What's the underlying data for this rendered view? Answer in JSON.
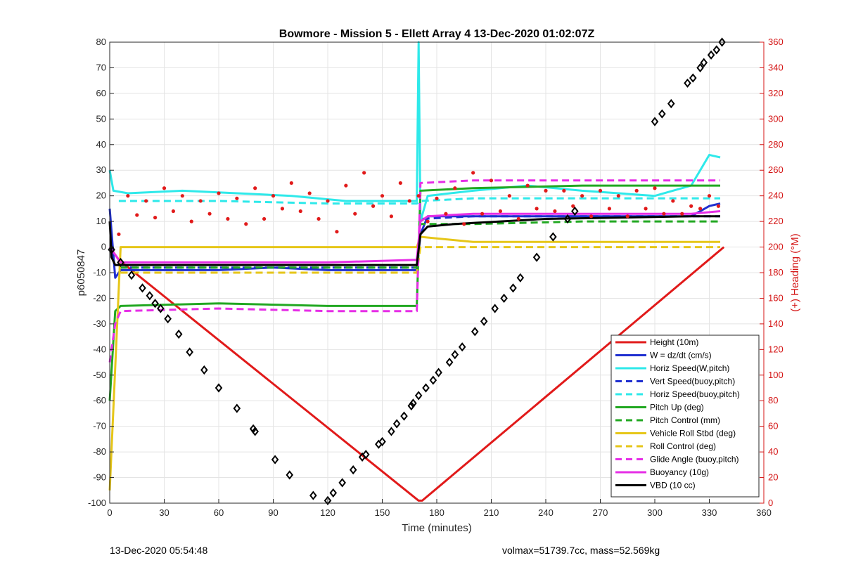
{
  "chart_data": {
    "type": "line",
    "title": "Bowmore - Mission 5 - Ellett Array 4 13-Dec-2020 01:02:07Z",
    "xlabel": "Time (minutes)",
    "ylabel": "p6050847",
    "y2label": "(+) Heading (°M)",
    "xlim": [
      0,
      360
    ],
    "ylim": [
      -100,
      80
    ],
    "y2lim": [
      0,
      360
    ],
    "grid": true,
    "legend_position": "bottom-right",
    "x_ticks": [
      "0",
      "30",
      "60",
      "90",
      "120",
      "150",
      "180",
      "210",
      "240",
      "270",
      "300",
      "330",
      "360"
    ],
    "y_ticks": [
      "80",
      "70",
      "60",
      "50",
      "40",
      "30",
      "20",
      "10",
      "0",
      "-10",
      "-20",
      "-30",
      "-40",
      "-50",
      "-60",
      "-70",
      "-80",
      "-90",
      "-100"
    ],
    "y2_ticks": [
      "360",
      "340",
      "320",
      "300",
      "280",
      "260",
      "240",
      "220",
      "200",
      "180",
      "160",
      "140",
      "120",
      "100",
      "80",
      "60",
      "40",
      "20",
      "0"
    ],
    "series": [
      {
        "name": "Height (10m)",
        "color": "#e11a1a",
        "style": "solid",
        "x": [
          0,
          5,
          170,
          172,
          338
        ],
        "y": [
          0,
          -5,
          -99,
          -99,
          0
        ]
      },
      {
        "name": "W = dz/dt (cm/s)",
        "color": "#1f2fd0",
        "style": "solid",
        "x": [
          0,
          3,
          6,
          30,
          60,
          90,
          120,
          150,
          169,
          171,
          175,
          200,
          240,
          280,
          320,
          330,
          336
        ],
        "y": [
          15,
          -12,
          -9,
          -9,
          -9,
          -8,
          -9,
          -9,
          -9,
          5,
          12,
          12,
          12,
          12,
          12,
          16,
          17
        ]
      },
      {
        "name": "Horiz Speed(W,pitch)",
        "color": "#2ee9ea",
        "style": "solid",
        "x": [
          0,
          2,
          10,
          40,
          70,
          100,
          130,
          150,
          169,
          170,
          171,
          175,
          200,
          230,
          260,
          300,
          320,
          330,
          336
        ],
        "y": [
          30,
          22,
          21,
          22,
          21,
          20,
          18,
          18,
          18,
          80,
          10,
          20,
          22,
          24,
          22,
          20,
          24,
          36,
          35
        ]
      },
      {
        "name": "Vert Speed(buoy,pitch)",
        "color": "#1f2fd0",
        "style": "dashed",
        "x": [
          5,
          60,
          120,
          169,
          171,
          200,
          260,
          320,
          336
        ],
        "y": [
          -8,
          -8,
          -8,
          -8,
          11,
          12,
          12,
          12,
          12
        ]
      },
      {
        "name": "Horiz Speed(buoy,pitch)",
        "color": "#2ee9ea",
        "style": "dashed",
        "x": [
          5,
          60,
          120,
          169,
          171,
          200,
          260,
          320,
          336
        ],
        "y": [
          18,
          18,
          17,
          17,
          18,
          19,
          19,
          19,
          19
        ]
      },
      {
        "name": "Pitch Up (deg)",
        "color": "#22a822",
        "style": "solid",
        "x": [
          0,
          3,
          6,
          60,
          120,
          169,
          171,
          200,
          260,
          320,
          336
        ],
        "y": [
          -60,
          -25,
          -23,
          -22,
          -23,
          -23,
          22,
          23,
          24,
          24,
          24
        ]
      },
      {
        "name": "Pitch Control (mm)",
        "color": "#22a822",
        "style": "dashed",
        "x": [
          6,
          60,
          120,
          169,
          171,
          200,
          260,
          320,
          336
        ],
        "y": [
          -8,
          -8,
          -8,
          -8,
          9,
          9,
          10,
          10,
          10
        ]
      },
      {
        "name": "Vehicle Roll Stbd (deg)",
        "color": "#e6c619",
        "style": "solid",
        "x": [
          0,
          6,
          60,
          120,
          169,
          171,
          200,
          260,
          320,
          336
        ],
        "y": [
          -95,
          0,
          0,
          0,
          0,
          4,
          2,
          2,
          2,
          2
        ]
      },
      {
        "name": "Roll Control (deg)",
        "color": "#e6c619",
        "style": "dashed",
        "x": [
          6,
          60,
          120,
          169,
          171,
          200,
          260,
          320,
          336
        ],
        "y": [
          -10,
          -10,
          -10,
          -10,
          0,
          0,
          0,
          0,
          0
        ]
      },
      {
        "name": "Glide Angle (buoy,pitch)",
        "color": "#e62ee6",
        "style": "dashed",
        "x": [
          0,
          3,
          6,
          60,
          120,
          169,
          171,
          200,
          260,
          320,
          336
        ],
        "y": [
          -45,
          -30,
          -25,
          -24,
          -25,
          -25,
          25,
          26,
          26,
          26,
          26
        ]
      },
      {
        "name": "Buoyancy (10g)",
        "color": "#e62ee6",
        "style": "solid",
        "x": [
          0,
          6,
          60,
          120,
          169,
          171,
          175,
          200,
          260,
          320,
          336
        ],
        "y": [
          0,
          -6,
          -6,
          -6,
          -5,
          10,
          12,
          13,
          13,
          13,
          14
        ]
      },
      {
        "name": "VBD (10 cc)",
        "color": "#000000",
        "style": "solid",
        "x": [
          0,
          1,
          3,
          60,
          120,
          169,
          171,
          175,
          190,
          240,
          320,
          336
        ],
        "y": [
          10,
          -4,
          -7,
          -7,
          -7,
          -7,
          5,
          8,
          9,
          11,
          12,
          12
        ]
      },
      {
        "name": "",
        "axis": "right",
        "color": "#e11a1a",
        "style": "markers",
        "x": [
          5,
          10,
          15,
          20,
          25,
          30,
          35,
          40,
          45,
          50,
          55,
          60,
          65,
          70,
          75,
          80,
          85,
          90,
          95,
          100,
          105,
          110,
          115,
          120,
          125,
          130,
          135,
          140,
          145,
          150,
          155,
          160,
          165,
          170,
          175,
          180,
          185,
          190,
          195,
          200,
          205,
          210,
          215,
          220,
          225,
          230,
          235,
          240,
          245,
          250,
          255,
          260,
          265,
          270,
          275,
          280,
          285,
          290,
          295,
          300,
          305,
          310,
          315,
          320,
          325,
          330,
          335
        ],
        "y": [
          210,
          240,
          225,
          236,
          223,
          246,
          228,
          240,
          220,
          236,
          226,
          242,
          222,
          238,
          218,
          246,
          222,
          240,
          230,
          250,
          228,
          242,
          222,
          236,
          212,
          248,
          226,
          258,
          232,
          240,
          224,
          250,
          236,
          240,
          220,
          238,
          226,
          246,
          218,
          258,
          226,
          252,
          228,
          240,
          222,
          248,
          230,
          244,
          228,
          244,
          232,
          240,
          224,
          244,
          230,
          240,
          224,
          244,
          230,
          246,
          226,
          236,
          226,
          232,
          230,
          240,
          232
        ]
      }
    ],
    "markers": {
      "name": "",
      "color": "#000000",
      "x": [
        1,
        6,
        12,
        18,
        22,
        25,
        28,
        32,
        38,
        44,
        52,
        60,
        70,
        79,
        80,
        91,
        99,
        112,
        120,
        123,
        128,
        134,
        139,
        141,
        148,
        150,
        155,
        158,
        162,
        166,
        167,
        170,
        174,
        178,
        181,
        187,
        190,
        194,
        201,
        206,
        212,
        217,
        222,
        226,
        235,
        244,
        252,
        256,
        300,
        304,
        309,
        318,
        321,
        325,
        327,
        331,
        334,
        337
      ],
      "y": [
        -1,
        -6,
        -11,
        -16,
        -19,
        -22,
        -24,
        -28,
        -34,
        -41,
        -48,
        -55,
        -63,
        -71,
        -72,
        -83,
        -89,
        -97,
        -99,
        -96,
        -92,
        -87,
        -82,
        -81,
        -77,
        -76,
        -72,
        -69,
        -66,
        -62,
        -61,
        -58,
        -55,
        -52,
        -49,
        -45,
        -42,
        -39,
        -33,
        -29,
        -24,
        -20,
        -16,
        -12,
        -4,
        4,
        11,
        14,
        49,
        52,
        56,
        64,
        66,
        70,
        72,
        75,
        77,
        80
      ]
    }
  },
  "footer": {
    "timestamp": "13-Dec-2020 05:54:48",
    "stats": "volmax=51739.7cc, mass=52.569kg"
  }
}
